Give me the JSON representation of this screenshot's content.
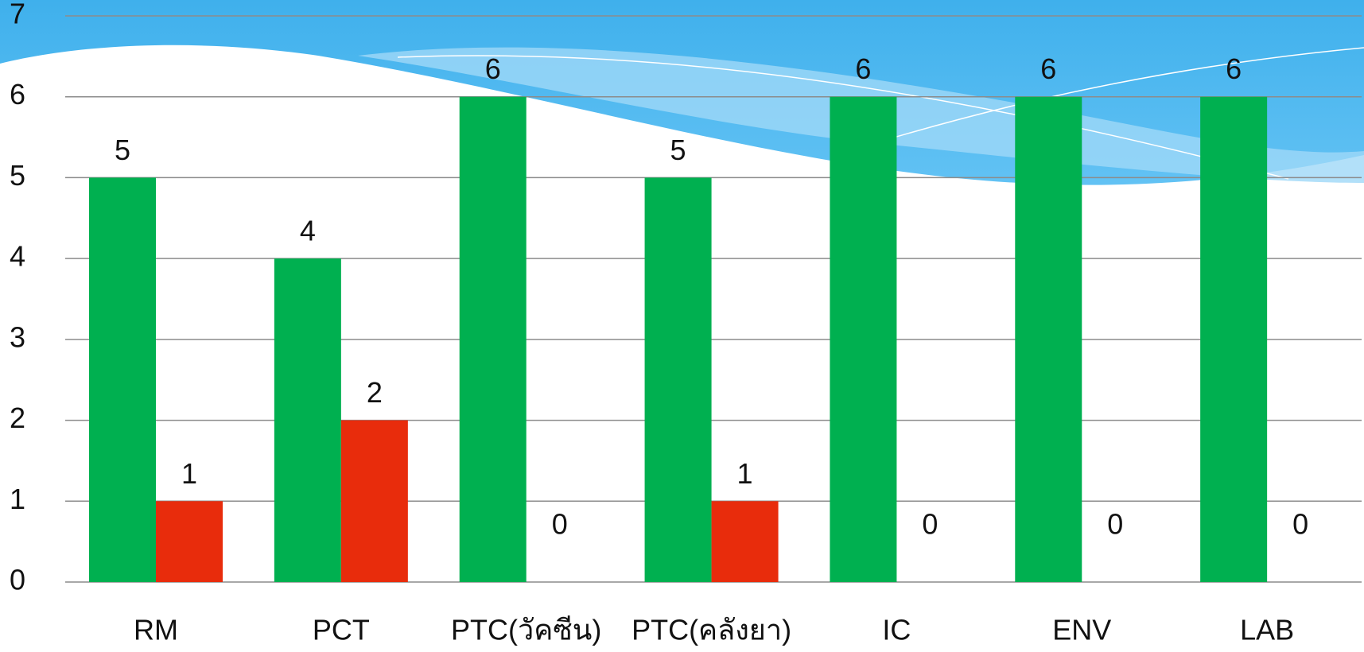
{
  "chart_data": {
    "type": "bar",
    "categories": [
      "RM",
      "PCT",
      "PTC(วัคซีน)",
      "PTC(คลังยา)",
      "IC",
      "ENV",
      "LAB"
    ],
    "series": [
      {
        "color": "#00b050",
        "values": [
          5,
          4,
          6,
          5,
          6,
          6,
          6
        ]
      },
      {
        "color": "#e82c0c",
        "values": [
          1,
          2,
          0,
          1,
          0,
          0,
          0
        ]
      }
    ],
    "ylim": [
      0,
      7
    ],
    "yticks": [
      0,
      1,
      2,
      3,
      4,
      5,
      6,
      7
    ],
    "grid": true
  }
}
